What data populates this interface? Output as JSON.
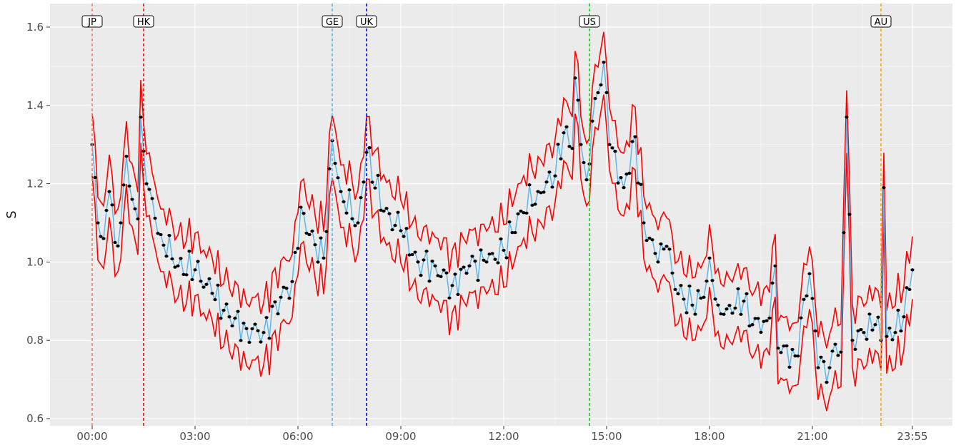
{
  "chart_data": {
    "type": "line",
    "title": "",
    "xlabel": "",
    "ylabel": "S",
    "x_unit": "time of day (5-minute intervals)",
    "x_range": [
      "00:00",
      "23:55"
    ],
    "ylim": [
      0.6,
      1.63
    ],
    "x_ticks": [
      "00:00",
      "03:00",
      "06:00",
      "09:00",
      "12:00",
      "15:00",
      "18:00",
      "21:00",
      "23:55"
    ],
    "y_ticks": [
      "0.6",
      "0.8",
      "1.0",
      "1.2",
      "1.4",
      "1.6"
    ],
    "grid": true,
    "legend": "none",
    "background": "#ebebeb",
    "colors": {
      "series": "#56b4e9",
      "points": "#000000",
      "band": "#ff0000"
    },
    "series": [
      {
        "role": "estimate",
        "style": "light blue line with black points",
        "anchors": [
          [
            "00:00",
            1.3
          ],
          [
            "00:10",
            1.1
          ],
          [
            "00:20",
            1.06
          ],
          [
            "00:30",
            1.18
          ],
          [
            "00:40",
            1.05
          ],
          [
            "00:50",
            1.1
          ],
          [
            "01:00",
            1.27
          ],
          [
            "01:10",
            1.16
          ],
          [
            "01:20",
            1.11
          ],
          [
            "01:25",
            1.37
          ],
          [
            "01:35",
            1.2
          ],
          [
            "02:00",
            1.07
          ],
          [
            "02:30",
            0.99
          ],
          [
            "03:00",
            0.98
          ],
          [
            "03:30",
            0.92
          ],
          [
            "04:00",
            0.86
          ],
          [
            "04:30",
            0.83
          ],
          [
            "05:00",
            0.82
          ],
          [
            "05:30",
            0.91
          ],
          [
            "05:50",
            0.95
          ],
          [
            "06:05",
            1.14
          ],
          [
            "06:20",
            1.07
          ],
          [
            "06:45",
            1.01
          ],
          [
            "07:00",
            1.31
          ],
          [
            "07:15",
            1.18
          ],
          [
            "07:45",
            1.1
          ],
          [
            "08:00",
            1.28
          ],
          [
            "08:30",
            1.13
          ],
          [
            "09:00",
            1.08
          ],
          [
            "09:30",
            1.0
          ],
          [
            "10:00",
            0.99
          ],
          [
            "10:30",
            0.94
          ],
          [
            "11:00",
            0.99
          ],
          [
            "11:30",
            1.0
          ],
          [
            "12:00",
            1.03
          ],
          [
            "12:30",
            1.13
          ],
          [
            "13:00",
            1.18
          ],
          [
            "13:30",
            1.22
          ],
          [
            "13:45",
            1.33
          ],
          [
            "14:00",
            1.29
          ],
          [
            "14:05",
            1.47
          ],
          [
            "14:15",
            1.3
          ],
          [
            "14:25",
            1.21
          ],
          [
            "14:35",
            1.36
          ],
          [
            "14:55",
            1.51
          ],
          [
            "15:05",
            1.3
          ],
          [
            "15:30",
            1.19
          ],
          [
            "15:50",
            1.32
          ],
          [
            "16:05",
            1.1
          ],
          [
            "16:30",
            1.0
          ],
          [
            "16:45",
            1.04
          ],
          [
            "17:00",
            0.93
          ],
          [
            "17:30",
            0.89
          ],
          [
            "17:50",
            0.91
          ],
          [
            "18:00",
            1.01
          ],
          [
            "18:15",
            0.89
          ],
          [
            "18:30",
            0.88
          ],
          [
            "19:00",
            0.9
          ],
          [
            "19:15",
            0.84
          ],
          [
            "19:40",
            0.85
          ],
          [
            "19:55",
            0.99
          ],
          [
            "20:00",
            0.78
          ],
          [
            "20:30",
            0.76
          ],
          [
            "20:55",
            0.97
          ],
          [
            "21:10",
            0.73
          ],
          [
            "21:30",
            0.73
          ],
          [
            "21:40",
            0.79
          ],
          [
            "21:50",
            0.77
          ],
          [
            "22:00",
            1.37
          ],
          [
            "22:10",
            0.8
          ],
          [
            "22:30",
            0.82
          ],
          [
            "22:50",
            0.84
          ],
          [
            "23:00",
            0.8
          ],
          [
            "23:05",
            1.19
          ],
          [
            "23:10",
            0.81
          ],
          [
            "23:25",
            0.82
          ],
          [
            "23:40",
            0.86
          ],
          [
            "23:55",
            0.98
          ]
        ]
      },
      {
        "role": "upper band",
        "style": "red line",
        "offset_above_estimate": 0.08
      },
      {
        "role": "lower band",
        "style": "red line",
        "offset_below_estimate": 0.08
      }
    ],
    "markets": [
      {
        "label": "JP",
        "time": "00:00",
        "color": "#f8766d"
      },
      {
        "label": "HK",
        "time": "01:30",
        "color": "#ff0000"
      },
      {
        "label": "GE",
        "time": "07:00",
        "color": "#56b4e9"
      },
      {
        "label": "UK",
        "time": "08:00",
        "color": "#0000ff"
      },
      {
        "label": "US",
        "time": "14:30",
        "color": "#00dd00"
      },
      {
        "label": "AU",
        "time": "23:00",
        "color": "#ffa500"
      }
    ]
  }
}
